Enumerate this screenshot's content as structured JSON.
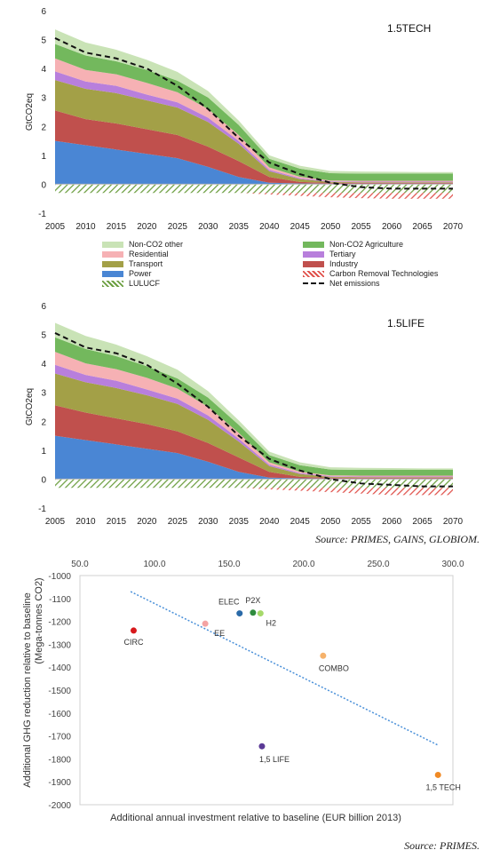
{
  "chart_data": [
    {
      "type": "area",
      "title": "1.5TECH",
      "ylabel": "GtCO2eq",
      "xlabel": "",
      "x": [
        2005,
        2010,
        2015,
        2020,
        2025,
        2030,
        2035,
        2040,
        2045,
        2050,
        2055,
        2060,
        2065,
        2070
      ],
      "ylim": [
        -1,
        6
      ],
      "yticks": [
        -1,
        0,
        1,
        2,
        3,
        4,
        5,
        6
      ],
      "series": [
        {
          "name": "Power",
          "color": "#4a86d4",
          "values": [
            1.5,
            1.35,
            1.2,
            1.05,
            0.9,
            0.6,
            0.25,
            0.05,
            0.03,
            0.02,
            0.02,
            0.02,
            0.02,
            0.02
          ]
        },
        {
          "name": "Industry",
          "color": "#c0504d",
          "values": [
            1.05,
            0.9,
            0.9,
            0.85,
            0.8,
            0.7,
            0.55,
            0.2,
            0.05,
            0.03,
            0.03,
            0.03,
            0.03,
            0.03
          ]
        },
        {
          "name": "Transport",
          "color": "#a3a047",
          "values": [
            1.05,
            1.05,
            1.05,
            1.0,
            0.95,
            0.85,
            0.6,
            0.2,
            0.1,
            0.03,
            0.02,
            0.02,
            0.02,
            0.02
          ]
        },
        {
          "name": "Tertiary",
          "color": "#b87fdc",
          "values": [
            0.3,
            0.25,
            0.25,
            0.2,
            0.18,
            0.15,
            0.1,
            0.05,
            0.03,
            0.02,
            0.02,
            0.02,
            0.02,
            0.02
          ]
        },
        {
          "name": "Residential",
          "color": "#f6b1b4",
          "values": [
            0.45,
            0.4,
            0.4,
            0.4,
            0.35,
            0.3,
            0.2,
            0.08,
            0.05,
            0.03,
            0.03,
            0.03,
            0.03,
            0.03
          ]
        },
        {
          "name": "Non-CO2 Agriculture",
          "color": "#73b85d",
          "values": [
            0.5,
            0.5,
            0.45,
            0.45,
            0.4,
            0.4,
            0.35,
            0.3,
            0.28,
            0.25,
            0.25,
            0.25,
            0.25,
            0.25
          ]
        },
        {
          "name": "Non-CO2 other",
          "color": "#c9e3b6",
          "values": [
            0.5,
            0.45,
            0.4,
            0.35,
            0.3,
            0.22,
            0.15,
            0.12,
            0.1,
            0.08,
            0.07,
            0.06,
            0.05,
            0.05
          ]
        }
      ],
      "negative_series": [
        {
          "name": "LULUCF",
          "color": "#6b9e3f",
          "values": [
            -0.3,
            -0.3,
            -0.3,
            -0.3,
            -0.3,
            -0.3,
            -0.3,
            -0.3,
            -0.3,
            -0.3,
            -0.3,
            -0.3,
            -0.3,
            -0.3
          ]
        },
        {
          "name": "Carbon Removal Technologies",
          "color": "#e0504a",
          "values": [
            0,
            0,
            0,
            0,
            0,
            0,
            0,
            -0.05,
            -0.1,
            -0.15,
            -0.18,
            -0.2,
            -0.2,
            -0.2
          ]
        }
      ],
      "line_series": {
        "name": "Net emissions",
        "color": "#111111",
        "values": [
          5.05,
          4.55,
          4.35,
          4.0,
          3.4,
          2.6,
          1.6,
          0.75,
          0.35,
          0.05,
          -0.1,
          -0.15,
          -0.15,
          -0.15
        ]
      }
    },
    {
      "type": "area",
      "title": "1.5LIFE",
      "ylabel": "GtCO2eq",
      "xlabel": "",
      "x": [
        2005,
        2010,
        2015,
        2020,
        2025,
        2030,
        2035,
        2040,
        2045,
        2050,
        2055,
        2060,
        2065,
        2070
      ],
      "ylim": [
        -1,
        6
      ],
      "yticks": [
        -1,
        0,
        1,
        2,
        3,
        4,
        5,
        6
      ],
      "series": [
        {
          "name": "Power",
          "color": "#4a86d4",
          "values": [
            1.5,
            1.35,
            1.2,
            1.05,
            0.9,
            0.6,
            0.25,
            0.05,
            0.03,
            0.02,
            0.02,
            0.02,
            0.02,
            0.02
          ]
        },
        {
          "name": "Industry",
          "color": "#c0504d",
          "values": [
            1.05,
            0.95,
            0.9,
            0.85,
            0.75,
            0.65,
            0.5,
            0.2,
            0.05,
            0.03,
            0.03,
            0.03,
            0.03,
            0.03
          ]
        },
        {
          "name": "Transport",
          "color": "#a3a047",
          "values": [
            1.1,
            1.05,
            1.05,
            1.0,
            0.95,
            0.8,
            0.55,
            0.2,
            0.1,
            0.03,
            0.02,
            0.02,
            0.02,
            0.02
          ]
        },
        {
          "name": "Tertiary",
          "color": "#b87fdc",
          "values": [
            0.3,
            0.25,
            0.25,
            0.2,
            0.18,
            0.15,
            0.1,
            0.05,
            0.03,
            0.02,
            0.02,
            0.02,
            0.02,
            0.02
          ]
        },
        {
          "name": "Residential",
          "color": "#f6b1b4",
          "values": [
            0.45,
            0.4,
            0.4,
            0.4,
            0.35,
            0.3,
            0.2,
            0.08,
            0.05,
            0.03,
            0.03,
            0.03,
            0.03,
            0.03
          ]
        },
        {
          "name": "Non-CO2 Agriculture",
          "color": "#73b85d",
          "values": [
            0.5,
            0.5,
            0.45,
            0.4,
            0.35,
            0.32,
            0.28,
            0.25,
            0.22,
            0.2,
            0.2,
            0.2,
            0.2,
            0.2
          ]
        },
        {
          "name": "Non-CO2 other",
          "color": "#c9e3b6",
          "values": [
            0.5,
            0.45,
            0.4,
            0.35,
            0.3,
            0.22,
            0.15,
            0.12,
            0.1,
            0.08,
            0.07,
            0.06,
            0.05,
            0.05
          ]
        }
      ],
      "negative_series": [
        {
          "name": "LULUCF",
          "color": "#6b9e3f",
          "values": [
            -0.3,
            -0.3,
            -0.3,
            -0.3,
            -0.3,
            -0.3,
            -0.3,
            -0.3,
            -0.3,
            -0.3,
            -0.3,
            -0.3,
            -0.3,
            -0.3
          ]
        },
        {
          "name": "Carbon Removal Technologies",
          "color": "#e0504a",
          "values": [
            0,
            0,
            0,
            0,
            0,
            0,
            0,
            -0.05,
            -0.1,
            -0.15,
            -0.2,
            -0.25,
            -0.25,
            -0.25
          ]
        }
      ],
      "line_series": {
        "name": "Net emissions",
        "color": "#111111",
        "values": [
          5.05,
          4.55,
          4.35,
          3.95,
          3.3,
          2.5,
          1.5,
          0.7,
          0.3,
          0.0,
          -0.15,
          -0.2,
          -0.25,
          -0.25
        ]
      }
    },
    {
      "type": "scatter",
      "title": "",
      "xlabel": "Additional annual investment relative to baseline (EUR billion 2013)",
      "ylabel": "Additional GHG reduction relative to baseline (Mega-tonnes CO2)",
      "xlim": [
        50,
        300
      ],
      "ylim": [
        -2000,
        -1000
      ],
      "xticks": [
        "50.0",
        "100.0",
        "150.0",
        "200.0",
        "250.0",
        "300.0"
      ],
      "yticks": [
        "-1000",
        "-1100",
        "-1200",
        "-1300",
        "-1400",
        "-1500",
        "-1600",
        "-1700",
        "-1800",
        "-1900",
        "-2000"
      ],
      "points": [
        {
          "label": "CIRC",
          "x": 86,
          "y": -1240,
          "color": "#d7191c"
        },
        {
          "label": "EE",
          "x": 134,
          "y": -1210,
          "color": "#f4a3a3"
        },
        {
          "label": "ELEC",
          "x": 157,
          "y": -1165,
          "color": "#2a6aa8"
        },
        {
          "label": "P2X",
          "x": 166,
          "y": -1162,
          "color": "#2e8b3e"
        },
        {
          "label": "H2",
          "x": 171,
          "y": -1165,
          "color": "#a6d96a"
        },
        {
          "label": "COMBO",
          "x": 213,
          "y": -1350,
          "color": "#f6b26b"
        },
        {
          "label": "1,5 LIFE",
          "x": 172,
          "y": -1745,
          "color": "#5b3a96"
        },
        {
          "label": "1,5 TECH",
          "x": 290,
          "y": -1870,
          "color": "#f08a24"
        }
      ],
      "trendline": {
        "x": [
          84,
          290
        ],
        "y": [
          -1070,
          -1740
        ],
        "color": "#4a90d9"
      }
    }
  ],
  "legend": [
    {
      "name": "Non-CO2 other",
      "color": "#c9e3b6",
      "style": "fill"
    },
    {
      "name": "Non-CO2 Agriculture",
      "color": "#73b85d",
      "style": "fill"
    },
    {
      "name": "Residential",
      "color": "#f6b1b4",
      "style": "fill"
    },
    {
      "name": "Tertiary",
      "color": "#b87fdc",
      "style": "fill"
    },
    {
      "name": "Transport",
      "color": "#a3a047",
      "style": "fill"
    },
    {
      "name": "Industry",
      "color": "#c0504d",
      "style": "fill"
    },
    {
      "name": "Power",
      "color": "#4a86d4",
      "style": "fill"
    },
    {
      "name": "Carbon Removal Technologies",
      "color": "#e0504a",
      "style": "hatch"
    },
    {
      "name": "LULUCF",
      "color": "#6b9e3f",
      "style": "hatch"
    },
    {
      "name": "Net emissions",
      "color": "#111111",
      "style": "dash"
    }
  ],
  "sources": {
    "top": "Source: PRIMES, GAINS, GLOBIOM.",
    "bottom": "Source: PRIMES."
  }
}
